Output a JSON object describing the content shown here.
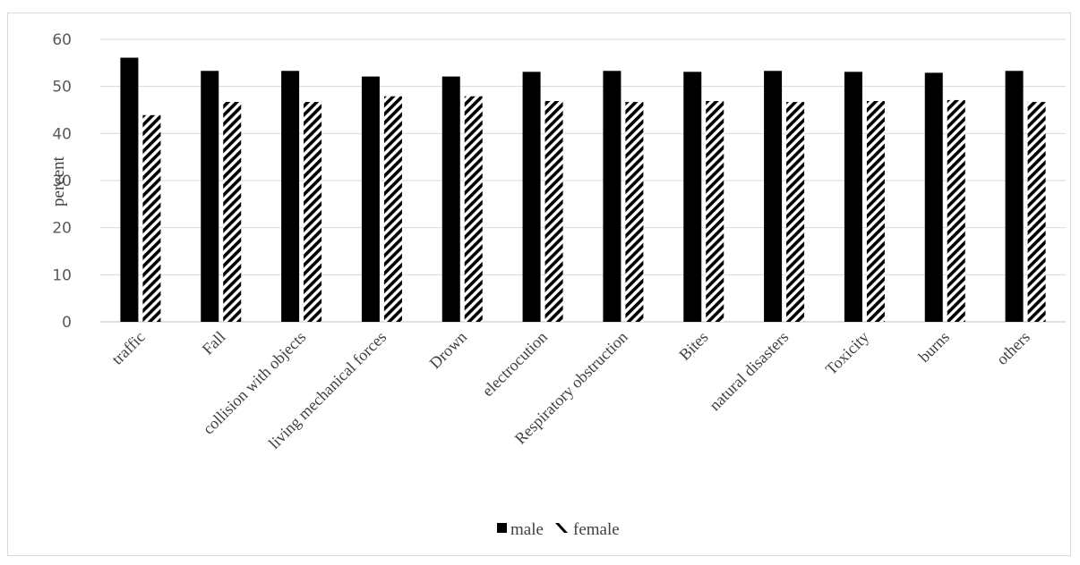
{
  "chart_data": {
    "type": "bar",
    "title": "",
    "xlabel": "",
    "ylabel": "percent",
    "ylim": [
      0,
      60
    ],
    "yticks": [
      "0",
      "10",
      "20",
      "30",
      "40",
      "50",
      "60"
    ],
    "grid": true,
    "legend_position": "bottom",
    "categories": [
      "traffic",
      "Fall",
      "collision with objects",
      "living mechanical forces",
      "Drown",
      "electrocution",
      "Respiratory obstruction",
      "Bites",
      "natural disasters",
      "Toxicity",
      "burns",
      "others"
    ],
    "series": [
      {
        "name": "male",
        "fill": "solid",
        "color": "#000000",
        "values": [
          56.1,
          53.3,
          53.3,
          52.1,
          52.1,
          53.1,
          53.3,
          53.1,
          53.3,
          53.1,
          52.9,
          53.3
        ]
      },
      {
        "name": "female",
        "fill": "diagonal-stripes",
        "color": "#000000",
        "values": [
          43.9,
          46.7,
          46.7,
          47.9,
          47.9,
          46.9,
          46.7,
          46.9,
          46.7,
          46.9,
          47.1,
          46.7
        ]
      }
    ]
  }
}
